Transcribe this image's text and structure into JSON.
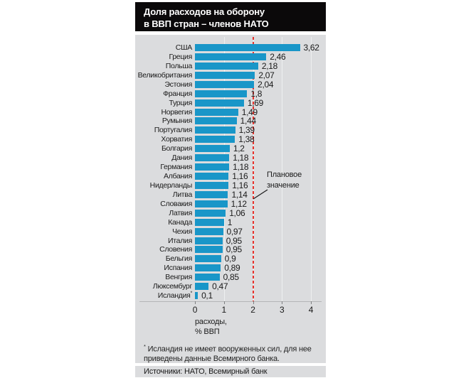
{
  "title": {
    "line1": "Доля расходов на оборону",
    "line2": "в ВВП стран – членов НАТО"
  },
  "chart_data": {
    "type": "bar",
    "orientation": "horizontal",
    "title": "Доля расходов на оборону в ВВП стран – членов НАТО",
    "xlabel": "расходы, % ВВП",
    "xlim": [
      0,
      4
    ],
    "x_ticks": [
      0,
      1,
      2,
      3,
      4
    ],
    "grid": "vertical",
    "categories": [
      "США",
      "Греция",
      "Польша",
      "Великобритания",
      "Эстония",
      "Франция",
      "Турция",
      "Норвегия",
      "Румыния",
      "Португалия",
      "Хорватия",
      "Болгария",
      "Дания",
      "Германия",
      "Албания",
      "Нидерланды",
      "Литва",
      "Словакия",
      "Латвия",
      "Канада",
      "Чехия",
      "Италия",
      "Словения",
      "Бельгия",
      "Испания",
      "Венгрия",
      "Люксембург",
      "Исландия*"
    ],
    "values": [
      3.62,
      2.46,
      2.18,
      2.07,
      2.04,
      1.8,
      1.69,
      1.49,
      1.44,
      1.39,
      1.38,
      1.2,
      1.18,
      1.18,
      1.16,
      1.16,
      1.14,
      1.12,
      1.06,
      1,
      0.97,
      0.95,
      0.95,
      0.9,
      0.89,
      0.85,
      0.47,
      0.1
    ],
    "value_labels": [
      "3,62",
      "2,46",
      "2,18",
      "2,07",
      "2,04",
      "1,8",
      "1,69",
      "1,49",
      "1,44",
      "1,39",
      "1,38",
      "1,2",
      "1,18",
      "1,18",
      "1,16",
      "1,16",
      "1,14",
      "1,12",
      "1,06",
      "1",
      "0,97",
      "0,95",
      "0,95",
      "0,9",
      "0,89",
      "0,85",
      "0,47",
      "0,1"
    ],
    "reference_line": {
      "value": 2,
      "label": "Плановое значение"
    }
  },
  "axis": {
    "ticks": [
      "0",
      "1",
      "2",
      "3",
      "4"
    ],
    "caption_line1": "расходы,",
    "caption_line2": "% ВВП"
  },
  "annotation": {
    "line1": "Плановое",
    "line2": "значение"
  },
  "footnote": {
    "marker": "*",
    "line1": " Исландия не имеет вооруженных сил, для нее",
    "line2": "приведены данные Всемирного банка."
  },
  "source": {
    "text": "Источники: НАТО, Всемирный банк"
  },
  "colors": {
    "bar": "#1996c8",
    "reference_line": "#e8312a",
    "panel_background": "#dbdcde",
    "title_background": "#0b090a",
    "gridline": "#eef0f0"
  }
}
